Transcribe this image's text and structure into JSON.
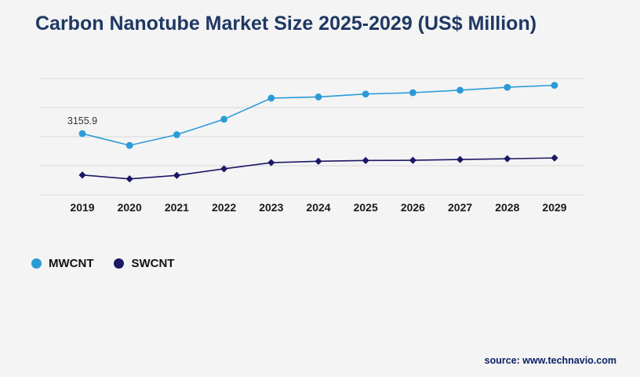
{
  "source_text": "source: www.technavio.com",
  "legend": [
    {
      "label": "MWCNT",
      "color": "#2b9bd7"
    },
    {
      "label": "SWCNT",
      "color": "#1c1866"
    }
  ],
  "colors": {
    "title": "#1f3864",
    "source": "#0b2265",
    "gridline": "#d9d9d9",
    "background": "#f4f4f4"
  },
  "chart_data": {
    "type": "line",
    "title": "Carbon Nanotube Market Size 2025-2029 (US$ Million)",
    "xlabel": "",
    "ylabel": "US$ Million",
    "categories": [
      "2019",
      "2020",
      "2021",
      "2022",
      "2023",
      "2024",
      "2025",
      "2026",
      "2027",
      "2028",
      "2029"
    ],
    "series": [
      {
        "name": "MWCNT",
        "color": "#2b9bd7",
        "marker": "circle",
        "values": [
          3155.9,
          2550,
          3100,
          3900,
          4990,
          5050,
          5200,
          5270,
          5400,
          5550,
          5650
        ]
      },
      {
        "name": "SWCNT",
        "color": "#1c1866",
        "marker": "diamond",
        "values": [
          1020,
          820,
          1000,
          1340,
          1660,
          1730,
          1770,
          1780,
          1820,
          1860,
          1900
        ]
      }
    ],
    "ylim": [
      0,
      6000
    ],
    "gridline_values": [
      0,
      1500,
      3000,
      4500,
      6000
    ],
    "grid": true,
    "y_axis_labels_shown": false,
    "legend_position": "bottom-left",
    "annotations": [
      {
        "series": "MWCNT",
        "index": 0,
        "text": "3155.9"
      }
    ]
  }
}
